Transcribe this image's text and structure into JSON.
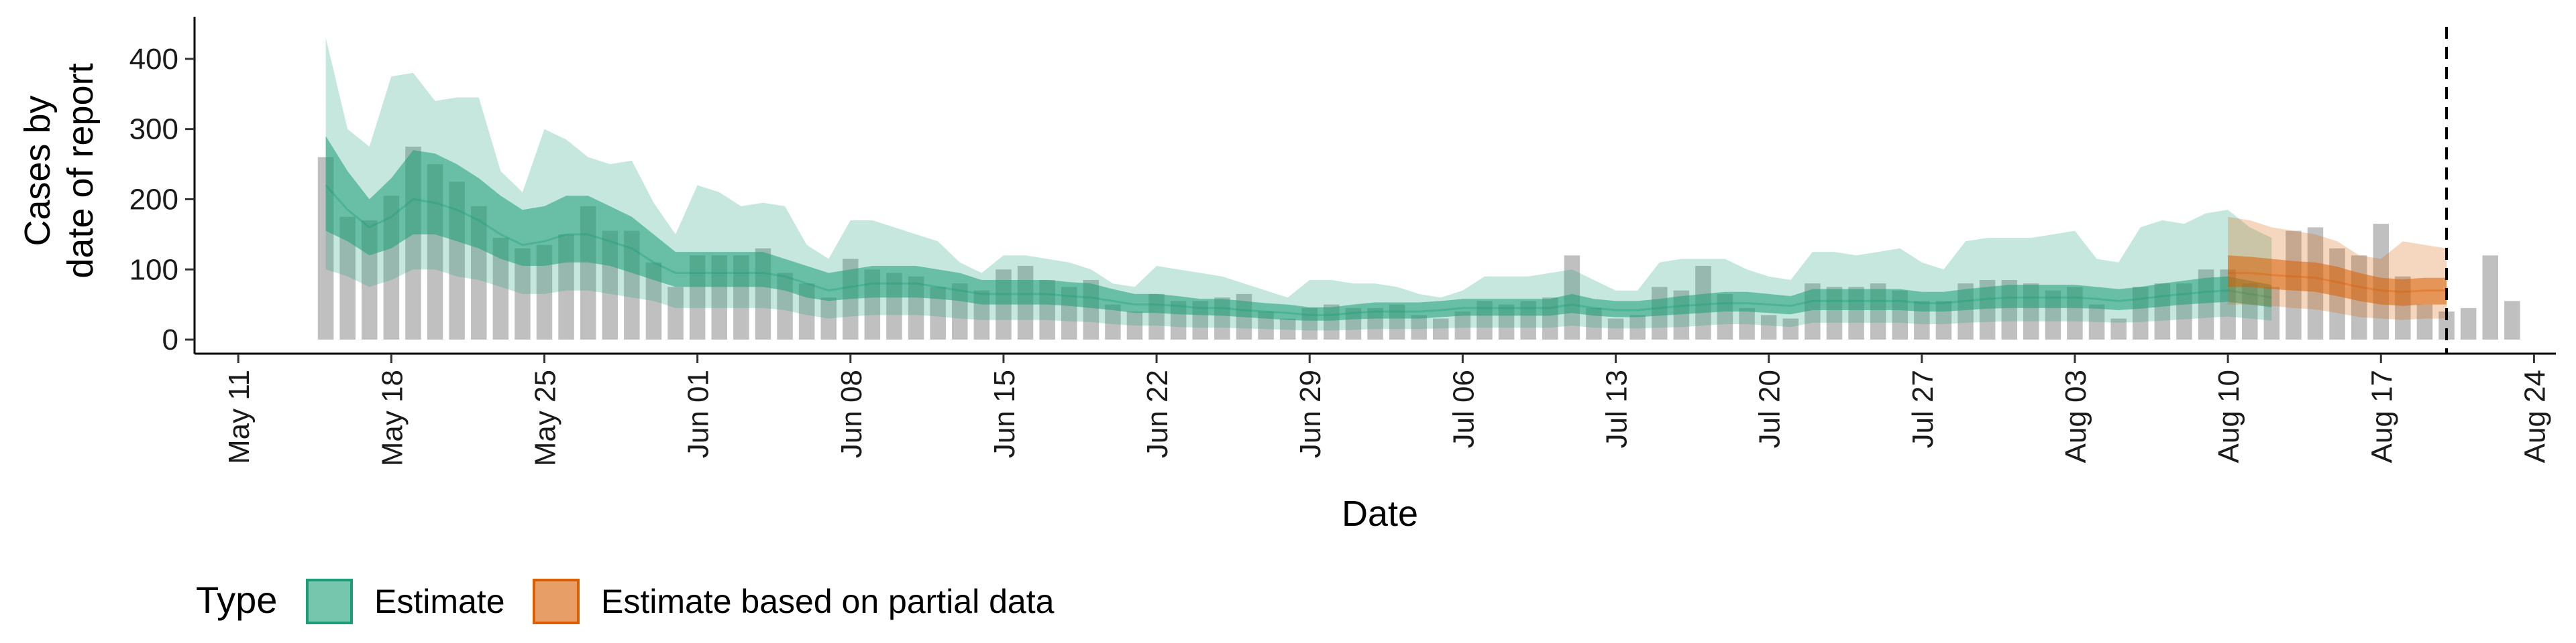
{
  "chart_data": {
    "type": "bar",
    "title": "",
    "xlabel": "Date",
    "ylabel_lines": [
      "Cases by",
      "date of report"
    ],
    "xlim": [
      "2020-05-09",
      "2020-08-25"
    ],
    "ylim": [
      -20,
      460
    ],
    "yticks": [
      0,
      100,
      200,
      300,
      400
    ],
    "xticks": [
      {
        "date": "2020-05-11",
        "label": "May 11"
      },
      {
        "date": "2020-05-18",
        "label": "May 18"
      },
      {
        "date": "2020-05-25",
        "label": "May 25"
      },
      {
        "date": "2020-06-01",
        "label": "Jun 01"
      },
      {
        "date": "2020-06-08",
        "label": "Jun 08"
      },
      {
        "date": "2020-06-15",
        "label": "Jun 15"
      },
      {
        "date": "2020-06-22",
        "label": "Jun 22"
      },
      {
        "date": "2020-06-29",
        "label": "Jun 29"
      },
      {
        "date": "2020-07-06",
        "label": "Jul 06"
      },
      {
        "date": "2020-07-13",
        "label": "Jul 13"
      },
      {
        "date": "2020-07-20",
        "label": "Jul 20"
      },
      {
        "date": "2020-07-27",
        "label": "Jul 27"
      },
      {
        "date": "2020-08-03",
        "label": "Aug 03"
      },
      {
        "date": "2020-08-10",
        "label": "Aug 10"
      },
      {
        "date": "2020-08-17",
        "label": "Aug 17"
      },
      {
        "date": "2020-08-24",
        "label": "Aug 24"
      }
    ],
    "vline_date": "2020-08-20",
    "observed_cases": {
      "start_date": "2020-05-15",
      "values": [
        260,
        175,
        170,
        205,
        275,
        250,
        225,
        190,
        145,
        130,
        135,
        150,
        190,
        155,
        155,
        110,
        75,
        120,
        120,
        120,
        130,
        95,
        80,
        60,
        115,
        100,
        95,
        90,
        75,
        80,
        70,
        100,
        105,
        85,
        75,
        85,
        50,
        40,
        65,
        55,
        55,
        60,
        65,
        40,
        30,
        45,
        50,
        45,
        45,
        50,
        35,
        30,
        40,
        55,
        50,
        55,
        60,
        120,
        45,
        30,
        35,
        75,
        70,
        105,
        65,
        45,
        35,
        30,
        80,
        75,
        75,
        80,
        70,
        55,
        55,
        80,
        85,
        85,
        80,
        70,
        75,
        50,
        30,
        75,
        80,
        80,
        100,
        100,
        80,
        75,
        155,
        160,
        130,
        120,
        165,
        90,
        50,
        40,
        45,
        120,
        55
      ]
    },
    "series": [
      {
        "name": "Estimate",
        "color": "#1b9e77",
        "start_date": "2020-05-15",
        "median": [
          220,
          185,
          160,
          175,
          200,
          195,
          185,
          170,
          150,
          135,
          140,
          150,
          150,
          140,
          130,
          110,
          95,
          95,
          95,
          95,
          95,
          90,
          80,
          70,
          75,
          80,
          80,
          80,
          75,
          70,
          65,
          65,
          65,
          65,
          62,
          60,
          55,
          50,
          50,
          48,
          45,
          45,
          42,
          40,
          38,
          35,
          35,
          38,
          40,
          40,
          40,
          42,
          45,
          45,
          45,
          45,
          45,
          50,
          45,
          42,
          42,
          45,
          48,
          50,
          52,
          52,
          50,
          48,
          55,
          55,
          55,
          55,
          55,
          52,
          52,
          55,
          58,
          60,
          60,
          60,
          60,
          58,
          55,
          58,
          62,
          65,
          68,
          70,
          65,
          60
        ],
        "inner_lower": [
          155,
          140,
          120,
          130,
          150,
          150,
          140,
          130,
          115,
          105,
          105,
          110,
          110,
          105,
          95,
          85,
          75,
          75,
          75,
          75,
          75,
          70,
          60,
          55,
          58,
          60,
          60,
          60,
          58,
          55,
          50,
          50,
          50,
          50,
          48,
          45,
          42,
          38,
          38,
          36,
          35,
          34,
          32,
          30,
          28,
          27,
          27,
          29,
          30,
          30,
          30,
          32,
          34,
          34,
          34,
          34,
          34,
          38,
          34,
          32,
          32,
          34,
          36,
          38,
          40,
          40,
          38,
          36,
          42,
          42,
          42,
          42,
          42,
          40,
          40,
          42,
          44,
          45,
          45,
          45,
          45,
          44,
          42,
          44,
          47,
          50,
          52,
          54,
          50,
          46
        ],
        "inner_upper": [
          290,
          240,
          200,
          230,
          270,
          265,
          250,
          230,
          205,
          185,
          190,
          205,
          205,
          190,
          175,
          150,
          125,
          125,
          125,
          125,
          125,
          115,
          105,
          95,
          100,
          105,
          105,
          105,
          100,
          95,
          85,
          85,
          85,
          85,
          82,
          80,
          72,
          65,
          65,
          62,
          58,
          58,
          55,
          52,
          50,
          46,
          46,
          50,
          53,
          53,
          53,
          55,
          58,
          58,
          58,
          58,
          58,
          65,
          58,
          55,
          55,
          58,
          62,
          65,
          68,
          68,
          65,
          62,
          72,
          72,
          72,
          72,
          72,
          68,
          68,
          72,
          75,
          78,
          78,
          78,
          78,
          75,
          72,
          75,
          80,
          84,
          88,
          90,
          84,
          78
        ],
        "outer_lower": [
          100,
          90,
          75,
          85,
          100,
          100,
          90,
          85,
          75,
          65,
          65,
          70,
          70,
          65,
          60,
          55,
          45,
          45,
          45,
          45,
          45,
          42,
          35,
          30,
          33,
          35,
          35,
          35,
          33,
          30,
          28,
          28,
          28,
          28,
          26,
          25,
          22,
          20,
          20,
          18,
          17,
          17,
          16,
          15,
          14,
          13,
          13,
          14,
          15,
          15,
          15,
          16,
          17,
          17,
          17,
          17,
          17,
          20,
          17,
          16,
          16,
          17,
          18,
          20,
          22,
          22,
          20,
          18,
          24,
          24,
          24,
          24,
          24,
          22,
          22,
          24,
          25,
          26,
          26,
          26,
          26,
          25,
          24,
          25,
          27,
          29,
          31,
          33,
          30,
          27
        ],
        "outer_upper": [
          430,
          300,
          275,
          375,
          380,
          340,
          345,
          345,
          240,
          210,
          300,
          285,
          260,
          250,
          255,
          195,
          150,
          220,
          210,
          190,
          195,
          190,
          135,
          115,
          170,
          170,
          160,
          150,
          140,
          110,
          95,
          120,
          120,
          115,
          110,
          100,
          80,
          75,
          105,
          100,
          95,
          90,
          80,
          70,
          60,
          85,
          85,
          80,
          80,
          75,
          65,
          60,
          70,
          90,
          90,
          90,
          95,
          100,
          85,
          70,
          70,
          110,
          115,
          115,
          115,
          100,
          90,
          85,
          125,
          125,
          120,
          125,
          130,
          110,
          100,
          140,
          145,
          145,
          145,
          150,
          155,
          115,
          110,
          160,
          170,
          165,
          180,
          185,
          160,
          145
        ]
      },
      {
        "name": "Estimate based on partial data",
        "color": "#d95f02",
        "start_date": "2020-08-10",
        "median": [
          95,
          95,
          92,
          90,
          88,
          82,
          75,
          70,
          68,
          70,
          70
        ],
        "inner_lower": [
          75,
          75,
          72,
          70,
          68,
          62,
          55,
          50,
          48,
          50,
          50
        ],
        "inner_upper": [
          120,
          118,
          115,
          112,
          110,
          104,
          95,
          88,
          86,
          88,
          88
        ],
        "outer_lower": [
          50,
          50,
          48,
          45,
          43,
          38,
          32,
          30,
          28,
          30,
          30
        ],
        "outer_upper": [
          175,
          170,
          160,
          155,
          150,
          140,
          120,
          115,
          140,
          135,
          130
        ]
      }
    ],
    "legend": {
      "title": "Type",
      "position": "bottom-left",
      "items": [
        "Estimate",
        "Estimate based on partial data"
      ]
    }
  }
}
